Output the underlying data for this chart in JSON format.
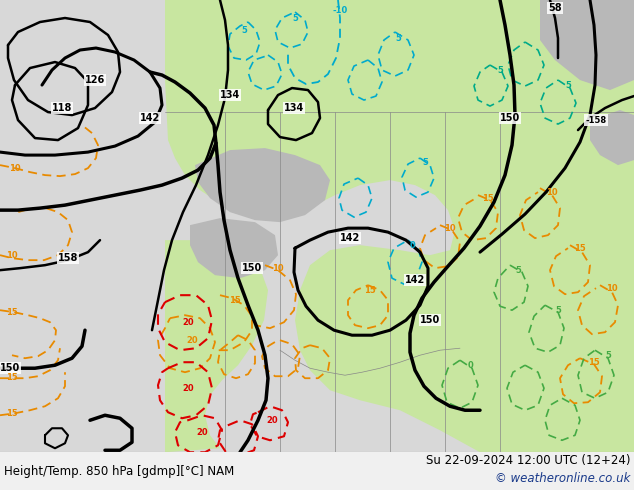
{
  "title_left": "Height/Temp. 850 hPa [gdmp][°C] NAM",
  "title_right": "Su 22-09-2024 12:00 UTC (12+24)",
  "copyright": "© weatheronline.co.uk",
  "bg_color": "#d8d8d8",
  "map_green": "#c8e6a0",
  "map_gray": "#b8b8b8",
  "bottom_bg": "#f0f0f0",
  "title_fontsize": 8.5,
  "copyright_color": "#1a3a8a",
  "fig_width": 6.34,
  "fig_height": 4.9,
  "dpi": 100,
  "black": "#000000",
  "orange": "#e88a00",
  "red": "#dd0000",
  "cyan": "#00aacc",
  "teal": "#00aa88",
  "green_dash": "#44aa44"
}
